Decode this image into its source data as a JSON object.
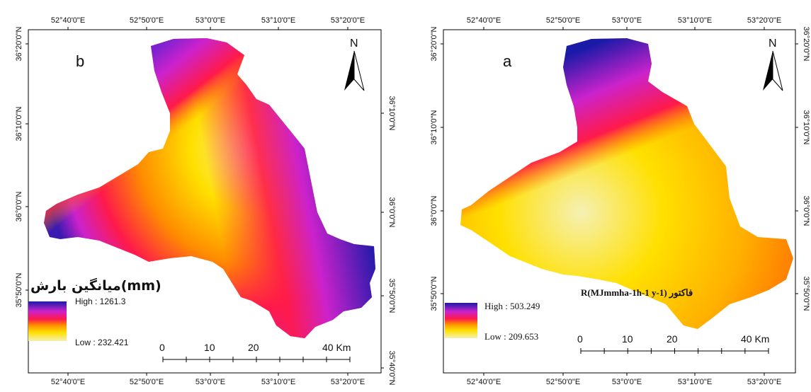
{
  "map_b": {
    "panel_label": "b",
    "north_label": "N",
    "legend_title": "میانگین بارش(mm)",
    "legend_high": "High : 1261.3",
    "legend_low": "Low : 232.421",
    "scale_labels": [
      "0",
      "10",
      "20",
      "40 Km"
    ],
    "top_ticks": [
      "52°40'0\"E",
      "52°50'0\"E",
      "53°0'0\"E",
      "53°10'0\"E",
      "53°20'0\"E"
    ],
    "bottom_ticks": [
      "52°40'0\"E",
      "52°50'0\"E",
      "53°0'0\"E",
      "53°10'0\"E",
      "53°20'0\"E"
    ],
    "left_ticks": [
      "36°20'0\"N",
      "36°10'0\"N",
      "36°0'0\"N",
      "35°50'0\"N"
    ],
    "right_ticks": [
      "36°10'0\"N",
      "36°0'0\"N",
      "35°50'0\"N",
      "35°40'0\"N"
    ]
  },
  "map_a": {
    "panel_label": "a",
    "north_label": "N",
    "legend_title": "فاکتور R(MJmmha-1h-1 y-1)",
    "legend_high": "High : 503.249",
    "legend_low": "Low : 209.653",
    "scale_labels": [
      "0",
      "10",
      "20",
      "40 Km"
    ],
    "top_ticks": [
      "52°40'0\"E",
      "52°50'0\"E",
      "53°0'0\"E",
      "53°10'0\"E",
      "53°20'0\"E"
    ],
    "bottom_ticks": [
      "52°40'0\"E",
      "52°50'0\"E",
      "53°0'0\"E",
      "53°10'0\"E",
      "53°20'0\"E"
    ],
    "left_ticks": [
      "36°20'0\"N",
      "36°10'0\"N",
      "36°0'0\"N",
      "35°50'0\"N"
    ],
    "right_ticks": [
      "36°20'0\"N",
      "36°10'0\"N",
      "36°0'0\"N",
      "35°50'0\"N"
    ]
  },
  "colors": {
    "ramp_high": "#1a1aa8",
    "ramp_mid_1": "#cc22cc",
    "ramp_mid_2": "#ff1a4a",
    "ramp_mid_3": "#ff8c00",
    "ramp_mid_4": "#ffe000",
    "ramp_low": "#f5f0b4"
  }
}
